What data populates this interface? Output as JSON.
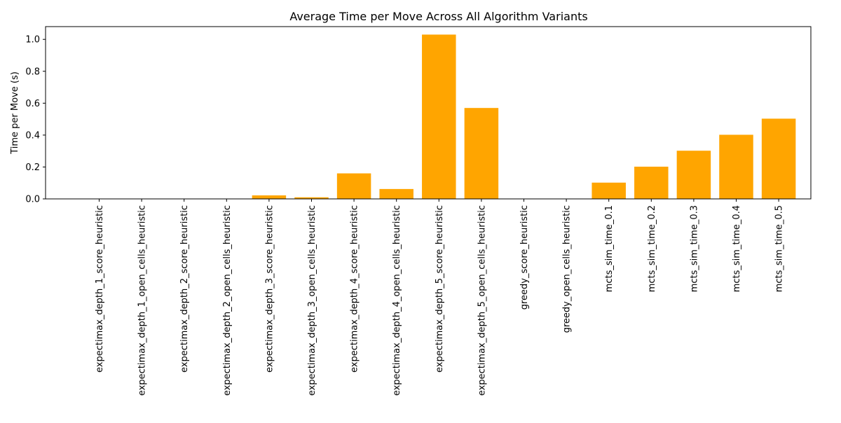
{
  "chart_data": {
    "type": "bar",
    "title": "Average Time per Move Across All Algorithm Variants",
    "xlabel": "",
    "ylabel": "Time per Move (s)",
    "ylim": [
      0,
      1.08
    ],
    "yticks": [
      0.0,
      0.2,
      0.4,
      0.6,
      0.8,
      1.0
    ],
    "ytick_labels": [
      "0.0",
      "0.2",
      "0.4",
      "0.6",
      "0.8",
      "1.0"
    ],
    "grid": false,
    "legend": "none",
    "bar_color": "#ffa500",
    "categories": [
      "expectimax_depth_1_score_heuristic",
      "expectimax_depth_1_open_cells_heuristic",
      "expectimax_depth_2_score_heuristic",
      "expectimax_depth_2_open_cells_heuristic",
      "expectimax_depth_3_score_heuristic",
      "expectimax_depth_3_open_cells_heuristic",
      "expectimax_depth_4_score_heuristic",
      "expectimax_depth_4_open_cells_heuristic",
      "expectimax_depth_5_score_heuristic",
      "expectimax_depth_5_open_cells_heuristic",
      "greedy_score_heuristic",
      "greedy_open_cells_heuristic",
      "mcts_sim_time_0.1",
      "mcts_sim_time_0.2",
      "mcts_sim_time_0.3",
      "mcts_sim_time_0.4",
      "mcts_sim_time_0.5"
    ],
    "values": [
      0.0005,
      0.0006,
      0.0012,
      0.0015,
      0.022,
      0.01,
      0.16,
      0.062,
      1.03,
      0.57,
      0.0003,
      0.0003,
      0.102,
      0.202,
      0.302,
      0.402,
      0.503
    ]
  }
}
